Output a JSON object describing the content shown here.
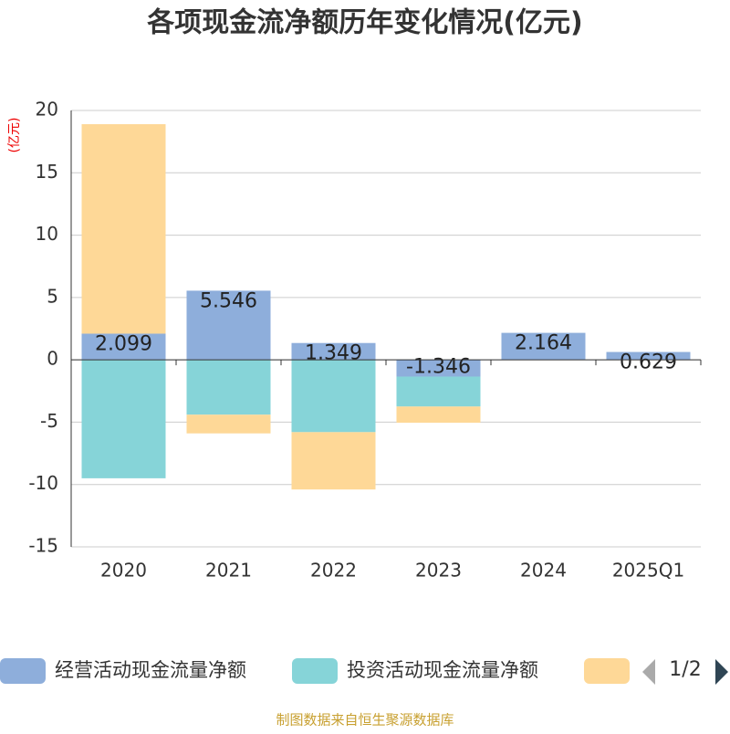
{
  "chart_data": {
    "type": "bar",
    "stacked": true,
    "title": "各项现金流净额历年变化情况(亿元)",
    "y_unit": "(亿元)",
    "categories": [
      "2020",
      "2021",
      "2022",
      "2023",
      "2024",
      "2025Q1"
    ],
    "series": [
      {
        "name": "经营活动现金流量净额",
        "color": "#8eaedb",
        "values": [
          2.099,
          5.546,
          1.349,
          -1.346,
          2.164,
          0.629
        ]
      },
      {
        "name": "投资活动现金流量净额",
        "color": "#86d4d8",
        "values": [
          -9.5,
          -4.4,
          -5.8,
          -2.4,
          0,
          0
        ]
      },
      {
        "color": "#fed897",
        "values": [
          16.8,
          -1.5,
          -4.6,
          -1.3,
          0,
          0
        ]
      }
    ],
    "ylim": [
      -15,
      20
    ],
    "yticks": [
      -15,
      -10,
      -5,
      0,
      5,
      10,
      15,
      20
    ],
    "grid": true,
    "legend_page": "1/2",
    "source": "制图数据来自恒生聚源数据库"
  }
}
